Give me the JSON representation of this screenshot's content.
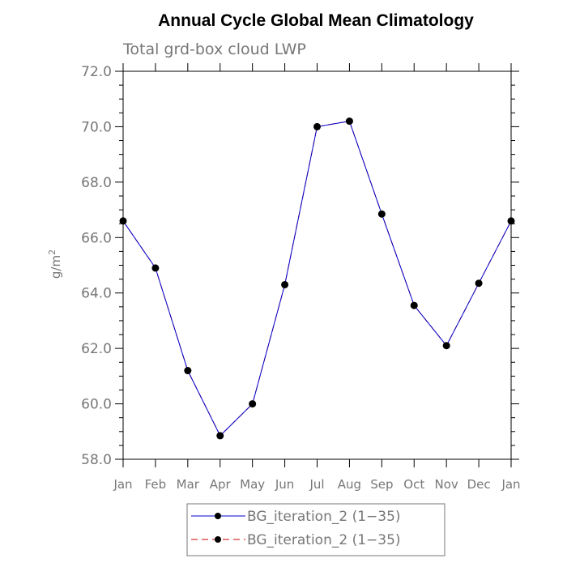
{
  "chart_data": {
    "type": "line",
    "title": "Annual Cycle Global Mean Climatology",
    "subtitle": "Total grd-box cloud LWP",
    "xlabel": "",
    "ylabel": "g/m",
    "ylabel_sup": "2",
    "categories": [
      "Jan",
      "Feb",
      "Mar",
      "Apr",
      "May",
      "Jun",
      "Jul",
      "Aug",
      "Sep",
      "Oct",
      "Nov",
      "Dec",
      "Jan"
    ],
    "ylim": [
      58.0,
      72.0
    ],
    "yticks": [
      "58.0",
      "60.0",
      "62.0",
      "64.0",
      "66.0",
      "68.0",
      "70.0",
      "72.0"
    ],
    "series": [
      {
        "name": "BG_iteration_2 (1−35)",
        "color": "#0000cc",
        "style": "solid",
        "values": [
          66.6,
          64.9,
          61.2,
          58.85,
          60.0,
          64.3,
          70.0,
          70.2,
          66.85,
          63.55,
          62.1,
          64.35,
          66.6
        ]
      },
      {
        "name": "BG_iteration_2 (1−35)",
        "color": "#cc0000",
        "style": "dashed",
        "values": [
          66.6,
          64.9,
          61.2,
          58.85,
          60.0,
          64.3,
          70.0,
          70.2,
          66.85,
          63.55,
          62.1,
          64.35,
          66.6
        ]
      }
    ],
    "marker_color": "#000000",
    "axis_color": "#000000"
  }
}
